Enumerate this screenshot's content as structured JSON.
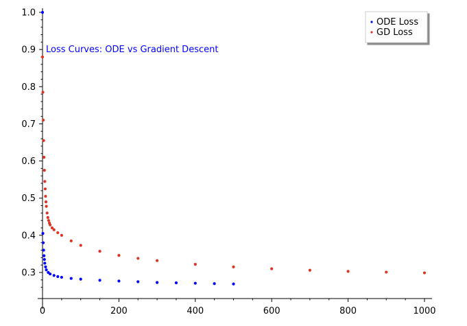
{
  "chart_data": {
    "type": "scatter",
    "annotation": "Loss Curves: ODE vs Gradient Descent",
    "xlim": [
      0,
      1000
    ],
    "ylim": [
      0.25,
      1.0
    ],
    "x_ticks": [
      0,
      200,
      400,
      600,
      800,
      1000
    ],
    "y_ticks": [
      0.3,
      0.4,
      0.5,
      0.6,
      0.7,
      0.8,
      0.9,
      1.0
    ],
    "grid": false,
    "legend_placement": "top-right",
    "series": [
      {
        "name": "ODE Loss",
        "color": "#0000ff",
        "x": [
          0,
          1,
          2,
          3,
          4,
          5,
          6,
          8,
          10,
          15,
          20,
          30,
          40,
          50,
          75,
          100,
          150,
          200,
          250,
          300,
          350,
          400,
          450,
          500
        ],
        "y": [
          1.0,
          0.405,
          0.38,
          0.36,
          0.345,
          0.335,
          0.325,
          0.315,
          0.307,
          0.3,
          0.296,
          0.292,
          0.289,
          0.287,
          0.284,
          0.282,
          0.279,
          0.277,
          0.275,
          0.273,
          0.272,
          0.271,
          0.27,
          0.269
        ]
      },
      {
        "name": "GD Loss",
        "color": "#dd3322",
        "x": [
          0,
          1,
          2,
          3,
          4,
          5,
          6,
          7,
          8,
          9,
          10,
          12,
          14,
          16,
          18,
          20,
          25,
          30,
          40,
          50,
          75,
          100,
          150,
          200,
          250,
          300,
          400,
          500,
          600,
          700,
          800,
          900,
          1000
        ],
        "y": [
          0.88,
          0.785,
          0.71,
          0.655,
          0.61,
          0.575,
          0.545,
          0.525,
          0.505,
          0.49,
          0.478,
          0.46,
          0.448,
          0.44,
          0.433,
          0.428,
          0.42,
          0.415,
          0.407,
          0.4,
          0.385,
          0.373,
          0.357,
          0.346,
          0.338,
          0.332,
          0.322,
          0.315,
          0.31,
          0.306,
          0.303,
          0.301,
          0.299
        ]
      }
    ]
  }
}
